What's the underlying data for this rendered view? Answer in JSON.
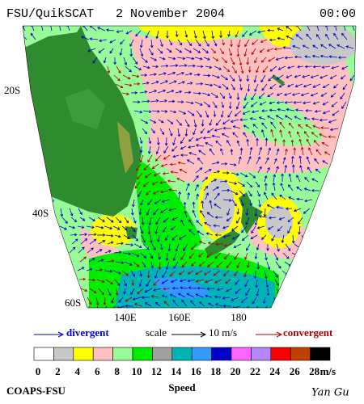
{
  "header": {
    "title": "FSU/QuikSCAT   2 November 2004",
    "time": "00:00"
  },
  "map": {
    "lat_labels": [
      "20S",
      "40S",
      "60S"
    ],
    "lon_labels": [
      "140E",
      "160E",
      "180"
    ]
  },
  "legend": {
    "divergent": "divergent",
    "scale": "scale",
    "scale_value": "10 m/s",
    "convergent": "convergent"
  },
  "colorbar": {
    "ticks": [
      "0",
      "2",
      "4",
      "6",
      "8",
      "10",
      "12",
      "14",
      "16",
      "18",
      "20",
      "22",
      "24",
      "26",
      "28"
    ],
    "unit": "m/s",
    "title": "Speed",
    "colors": [
      "#ffffff",
      "#c8c8c8",
      "#ffff00",
      "#ffc0c0",
      "#98fb98",
      "#00ee00",
      "#a0a0a0",
      "#00b4b4",
      "#3399ff",
      "#0000cc",
      "#ff66ff",
      "#b388ff",
      "#ff0000",
      "#c04000",
      "#000000"
    ]
  },
  "footer": {
    "credit": "COAPS-FSU",
    "author": "Yan Gu"
  }
}
